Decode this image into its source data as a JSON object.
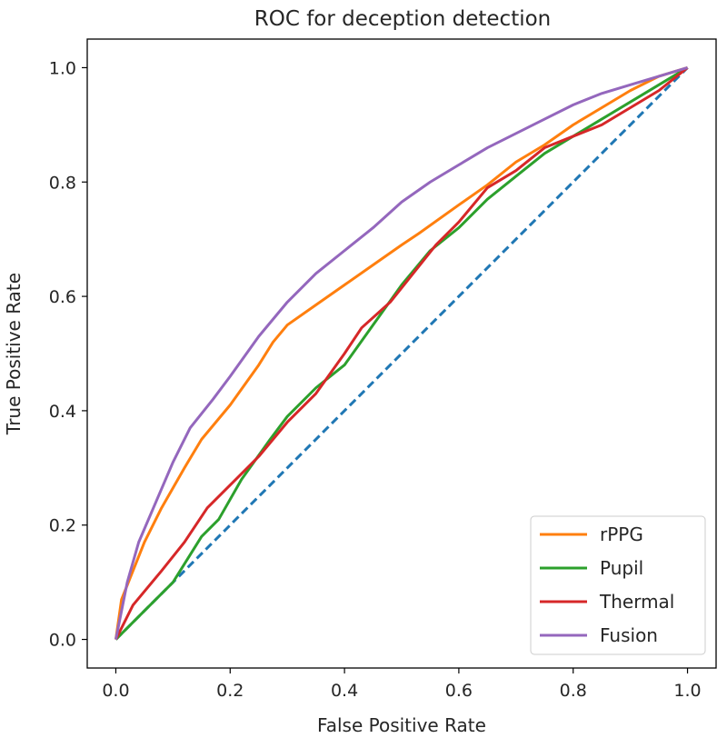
{
  "chart_data": {
    "type": "line",
    "title": "ROC for deception detection",
    "xlabel": "False Positive Rate",
    "ylabel": "True Positive Rate",
    "xlim": [
      -0.05,
      1.05
    ],
    "ylim": [
      -0.05,
      1.05
    ],
    "xticks": [
      "0.0",
      "0.2",
      "0.4",
      "0.6",
      "0.8",
      "1.0"
    ],
    "yticks": [
      "0.0",
      "0.2",
      "0.4",
      "0.6",
      "0.8",
      "1.0"
    ],
    "grid": false,
    "legend_position": "lower-right",
    "series": [
      {
        "name": "rPPG",
        "color": "#ff7f0e",
        "x": [
          0.0,
          0.01,
          0.03,
          0.05,
          0.08,
          0.12,
          0.15,
          0.2,
          0.25,
          0.275,
          0.3,
          0.35,
          0.4,
          0.45,
          0.5,
          0.53,
          0.6,
          0.65,
          0.7,
          0.75,
          0.8,
          0.85,
          0.9,
          0.95,
          1.0
        ],
        "y": [
          0.0,
          0.07,
          0.12,
          0.17,
          0.23,
          0.3,
          0.35,
          0.41,
          0.48,
          0.52,
          0.55,
          0.585,
          0.62,
          0.655,
          0.69,
          0.71,
          0.76,
          0.795,
          0.835,
          0.865,
          0.9,
          0.93,
          0.96,
          0.985,
          1.0
        ]
      },
      {
        "name": "Pupil",
        "color": "#2ca02c",
        "x": [
          0.0,
          0.05,
          0.1,
          0.15,
          0.18,
          0.22,
          0.27,
          0.3,
          0.35,
          0.4,
          0.45,
          0.5,
          0.55,
          0.6,
          0.65,
          0.7,
          0.75,
          0.8,
          0.85,
          0.9,
          0.95,
          1.0
        ],
        "y": [
          0.0,
          0.05,
          0.1,
          0.18,
          0.21,
          0.28,
          0.35,
          0.39,
          0.44,
          0.48,
          0.55,
          0.62,
          0.68,
          0.72,
          0.77,
          0.81,
          0.85,
          0.88,
          0.91,
          0.94,
          0.97,
          1.0
        ]
      },
      {
        "name": "Thermal",
        "color": "#d62728",
        "x": [
          0.0,
          0.03,
          0.08,
          0.12,
          0.16,
          0.2,
          0.25,
          0.3,
          0.35,
          0.4,
          0.43,
          0.48,
          0.52,
          0.56,
          0.6,
          0.65,
          0.7,
          0.75,
          0.8,
          0.85,
          0.9,
          0.95,
          1.0
        ],
        "y": [
          0.0,
          0.06,
          0.12,
          0.17,
          0.23,
          0.27,
          0.32,
          0.38,
          0.43,
          0.5,
          0.545,
          0.59,
          0.64,
          0.69,
          0.73,
          0.79,
          0.82,
          0.86,
          0.88,
          0.9,
          0.93,
          0.96,
          1.0
        ]
      },
      {
        "name": "Fusion",
        "color": "#9467bd",
        "x": [
          0.0,
          0.02,
          0.04,
          0.07,
          0.1,
          0.13,
          0.17,
          0.2,
          0.25,
          0.3,
          0.35,
          0.4,
          0.45,
          0.5,
          0.55,
          0.6,
          0.65,
          0.7,
          0.75,
          0.8,
          0.85,
          0.9,
          0.95,
          1.0
        ],
        "y": [
          0.0,
          0.1,
          0.17,
          0.24,
          0.31,
          0.37,
          0.42,
          0.46,
          0.53,
          0.59,
          0.64,
          0.68,
          0.72,
          0.765,
          0.8,
          0.83,
          0.86,
          0.885,
          0.91,
          0.935,
          0.955,
          0.97,
          0.985,
          1.0
        ]
      },
      {
        "color": "#1f77b4",
        "dashed": true,
        "x": [
          0.0,
          1.0
        ],
        "y": [
          0.0,
          1.0
        ]
      }
    ]
  }
}
